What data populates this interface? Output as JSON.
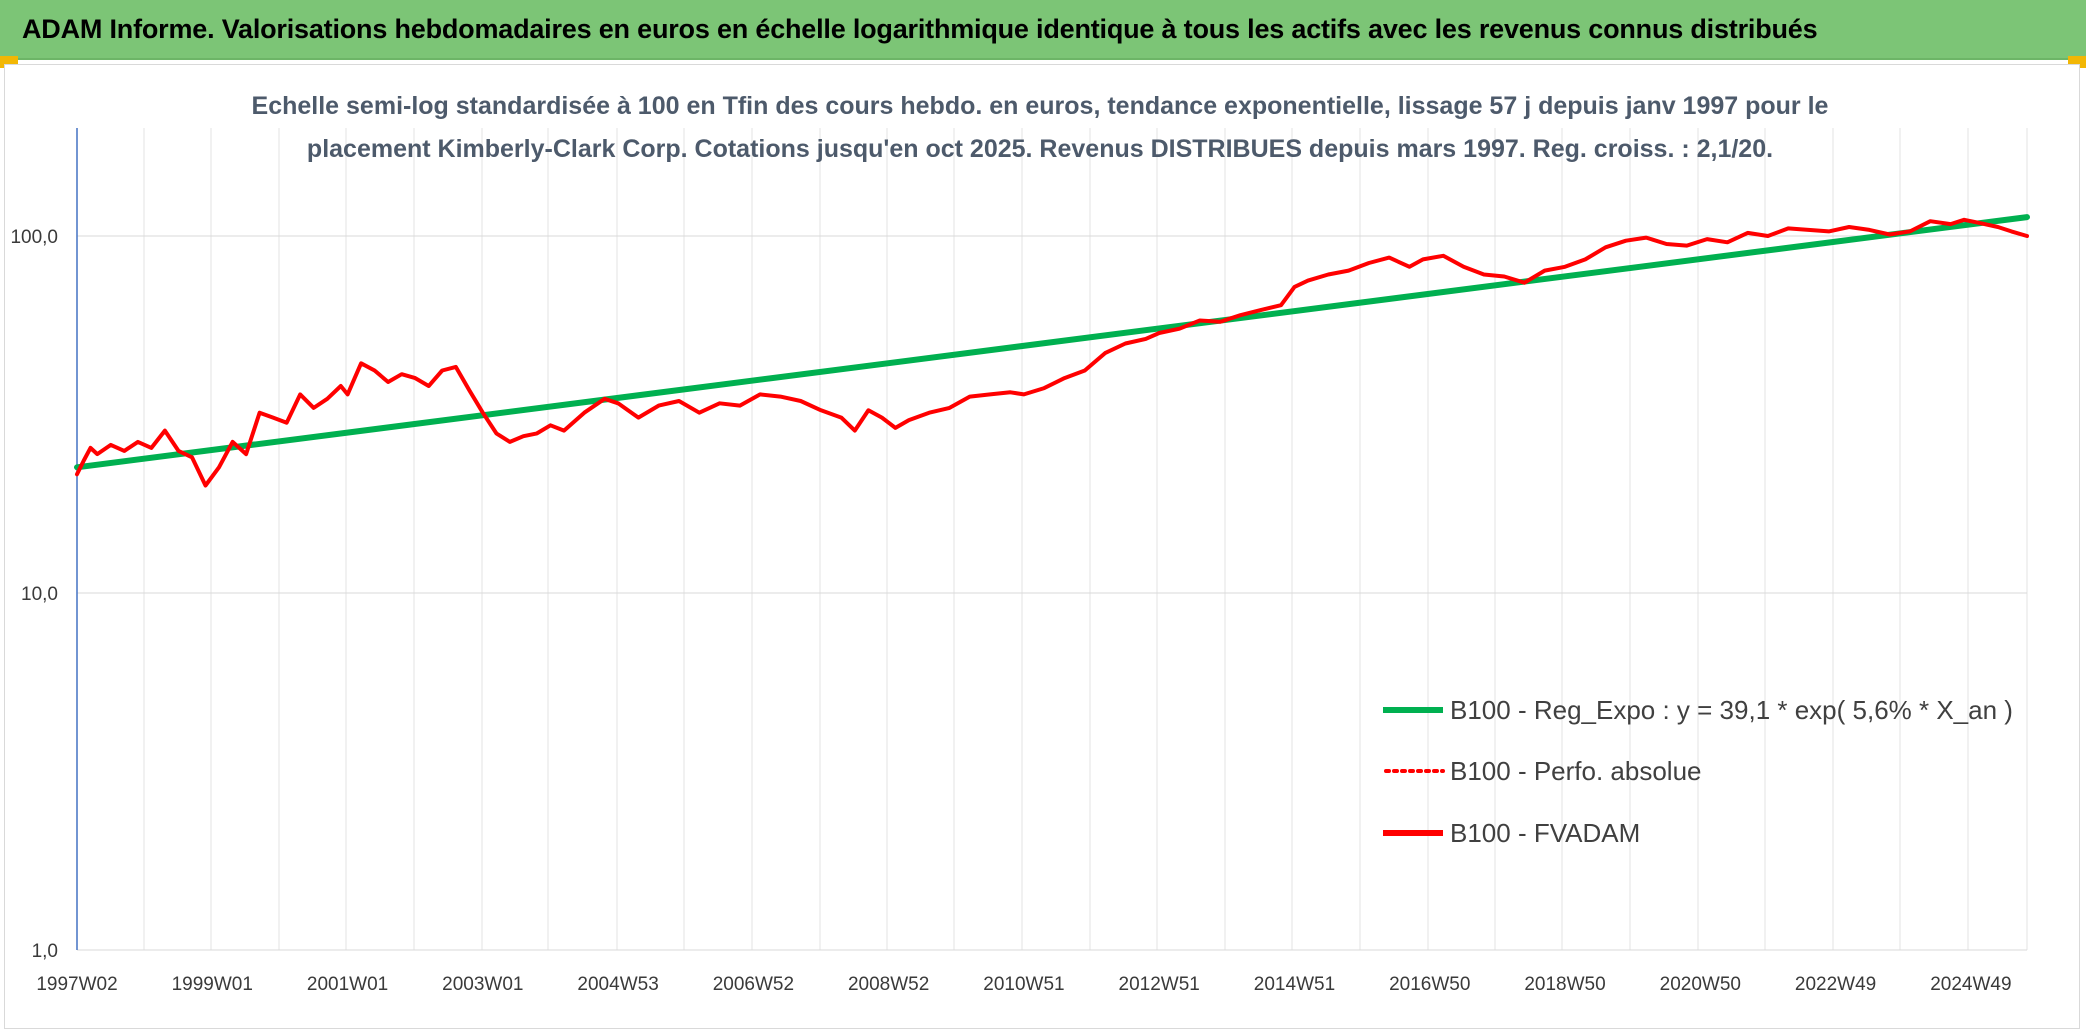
{
  "header": {
    "title": "ADAM Informe. Valorisations hebdomadaires en euros en échelle logarithmique identique à tous les actifs avec les revenus connus distribués"
  },
  "colors": {
    "banner": "#7cc576",
    "trend": "#00b050",
    "fvadam": "#ff0000",
    "perf": "#ff0000",
    "grid": "#e3e3e3",
    "axis": "#4472c4"
  },
  "chart_data": {
    "type": "line",
    "title_line1": "Echelle semi-log standardisée à 100 en Tfin des cours hebdo. en euros, tendance exponentielle, lissage 57 j depuis janv 1997 pour le",
    "title_line2": "placement Kimberly-Clark Corp. Cotations jusqu'en oct 2025. Revenus DISTRIBUES depuis mars 1997. Reg. croiss. : 2,1/20.",
    "y_scale": "log",
    "ylim": [
      1,
      200
    ],
    "y_ticks": [
      {
        "value": 1,
        "label": "1,0"
      },
      {
        "value": 10,
        "label": "10,0"
      },
      {
        "value": 100,
        "label": "100,0"
      }
    ],
    "xlim": [
      1997.0,
      2025.83
    ],
    "x_ticks": [
      {
        "value": 1997.0,
        "label": "1997W02"
      },
      {
        "value": 1999.0,
        "label": "1999W01"
      },
      {
        "value": 2001.0,
        "label": "2001W01"
      },
      {
        "value": 2003.0,
        "label": "2003W01"
      },
      {
        "value": 2005.0,
        "label": "2004W53"
      },
      {
        "value": 2007.0,
        "label": "2006W52"
      },
      {
        "value": 2009.0,
        "label": "2008W52"
      },
      {
        "value": 2011.0,
        "label": "2010W51"
      },
      {
        "value": 2013.0,
        "label": "2012W51"
      },
      {
        "value": 2015.0,
        "label": "2014W51"
      },
      {
        "value": 2017.0,
        "label": "2016W50"
      },
      {
        "value": 2019.0,
        "label": "2018W50"
      },
      {
        "value": 2021.0,
        "label": "2020W50"
      },
      {
        "value": 2023.0,
        "label": "2022W49"
      },
      {
        "value": 2025.0,
        "label": "2024W49"
      }
    ],
    "grid": true,
    "legend_position": "bottom-right",
    "series": [
      {
        "name": "B100 - Reg_Expo : y = 39,1 * exp( 5,6% *  X_an )",
        "style": "solid-thick",
        "x": [
          1997.0,
          2025.83
        ],
        "y": [
          22.5,
          113.0
        ]
      },
      {
        "name": "B100 - Perfo. absolue",
        "style": "dotted",
        "x": [],
        "y": []
      },
      {
        "name": "B100 - FVADAM",
        "style": "solid",
        "x": [
          1997.0,
          1997.1,
          1997.2,
          1997.3,
          1997.5,
          1997.7,
          1997.9,
          1998.1,
          1998.3,
          1998.5,
          1998.7,
          1998.9,
          1999.1,
          1999.3,
          1999.5,
          1999.7,
          1999.9,
          2000.1,
          2000.3,
          2000.5,
          2000.7,
          2000.9,
          2001.0,
          2001.2,
          2001.4,
          2001.6,
          2001.8,
          2002.0,
          2002.2,
          2002.4,
          2002.6,
          2002.8,
          2003.0,
          2003.2,
          2003.4,
          2003.6,
          2003.8,
          2004.0,
          2004.2,
          2004.5,
          2004.8,
          2005.0,
          2005.3,
          2005.6,
          2005.9,
          2006.2,
          2006.5,
          2006.8,
          2007.1,
          2007.4,
          2007.7,
          2008.0,
          2008.3,
          2008.5,
          2008.7,
          2008.9,
          2009.1,
          2009.3,
          2009.6,
          2009.9,
          2010.2,
          2010.5,
          2010.8,
          2011.0,
          2011.3,
          2011.6,
          2011.9,
          2012.2,
          2012.5,
          2012.8,
          2013.0,
          2013.3,
          2013.6,
          2013.9,
          2014.2,
          2014.5,
          2014.8,
          2015.0,
          2015.2,
          2015.5,
          2015.8,
          2016.1,
          2016.4,
          2016.7,
          2016.9,
          2017.2,
          2017.5,
          2017.8,
          2018.1,
          2018.4,
          2018.7,
          2019.0,
          2019.3,
          2019.6,
          2019.9,
          2020.2,
          2020.5,
          2020.8,
          2021.1,
          2021.4,
          2021.7,
          2022.0,
          2022.3,
          2022.6,
          2022.9,
          2023.2,
          2023.5,
          2023.8,
          2024.1,
          2024.4,
          2024.7,
          2024.9,
          2025.1,
          2025.4,
          2025.6,
          2025.83
        ],
        "y": [
          21.5,
          23.5,
          25.5,
          24.5,
          26.0,
          25.0,
          26.5,
          25.5,
          28.5,
          25.0,
          24.0,
          20.0,
          22.5,
          26.5,
          24.5,
          32.0,
          31.0,
          30.0,
          36.0,
          33.0,
          35.0,
          38.0,
          36.0,
          44.0,
          42.0,
          39.0,
          41.0,
          40.0,
          38.0,
          42.0,
          43.0,
          37.0,
          32.0,
          28.0,
          26.5,
          27.5,
          28.0,
          29.5,
          28.5,
          32.0,
          35.0,
          34.0,
          31.0,
          33.5,
          34.5,
          32.0,
          34.0,
          33.5,
          36.0,
          35.5,
          34.5,
          32.5,
          31.0,
          28.5,
          32.5,
          31.0,
          29.0,
          30.5,
          32.0,
          33.0,
          35.5,
          36.0,
          36.5,
          36.0,
          37.5,
          40.0,
          42.0,
          47.0,
          50.0,
          51.5,
          53.5,
          55.0,
          58.0,
          57.5,
          60.0,
          62.0,
          64.0,
          72.0,
          75.0,
          78.0,
          80.0,
          84.0,
          87.0,
          82.0,
          86.0,
          88.0,
          82.0,
          78.0,
          77.0,
          74.0,
          80.0,
          82.0,
          86.0,
          93.0,
          97.0,
          99.0,
          95.0,
          94.0,
          98.0,
          96.0,
          102.0,
          100.0,
          105.0,
          104.0,
          103.0,
          106.0,
          104.0,
          101.0,
          103.0,
          110.0,
          108.0,
          111.0,
          109.0,
          106.0,
          103.0,
          100.0
        ]
      }
    ]
  }
}
